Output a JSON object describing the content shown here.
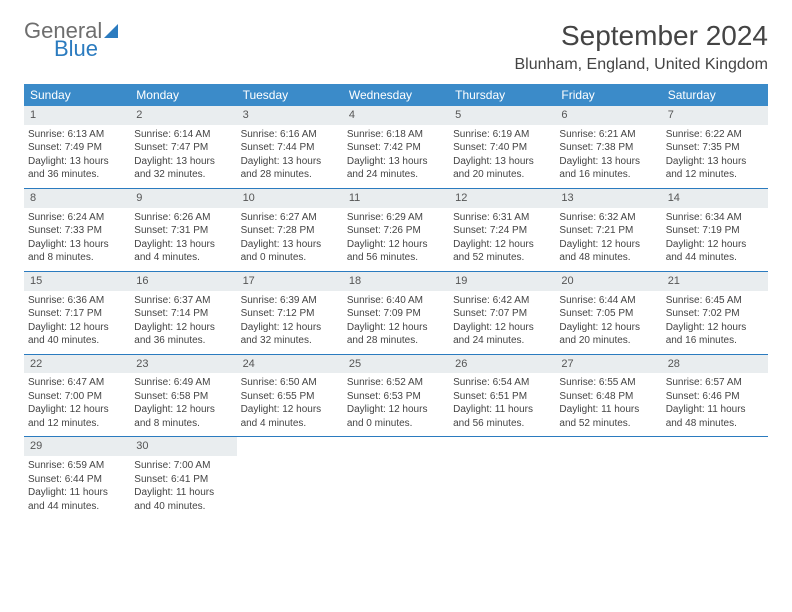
{
  "logo": {
    "part1": "General",
    "part2": "Blue"
  },
  "title": "September 2024",
  "location": "Blunham, England, United Kingdom",
  "colors": {
    "header_bg": "#3b8bc9",
    "header_text": "#ffffff",
    "daynum_bg": "#e9edef",
    "border": "#2b7bbf",
    "text": "#444444",
    "logo_gray": "#6e6e6e",
    "logo_blue": "#2b7bbf",
    "page_bg": "#ffffff"
  },
  "fonts": {
    "title_size_pt": 21,
    "location_size_pt": 12,
    "header_size_pt": 9,
    "cell_size_pt": 7.5
  },
  "weekdays": [
    "Sunday",
    "Monday",
    "Tuesday",
    "Wednesday",
    "Thursday",
    "Friday",
    "Saturday"
  ],
  "weeks": [
    {
      "nums": [
        "1",
        "2",
        "3",
        "4",
        "5",
        "6",
        "7"
      ],
      "cells": [
        {
          "sunrise": "Sunrise: 6:13 AM",
          "sunset": "Sunset: 7:49 PM",
          "daylight": "Daylight: 13 hours and 36 minutes."
        },
        {
          "sunrise": "Sunrise: 6:14 AM",
          "sunset": "Sunset: 7:47 PM",
          "daylight": "Daylight: 13 hours and 32 minutes."
        },
        {
          "sunrise": "Sunrise: 6:16 AM",
          "sunset": "Sunset: 7:44 PM",
          "daylight": "Daylight: 13 hours and 28 minutes."
        },
        {
          "sunrise": "Sunrise: 6:18 AM",
          "sunset": "Sunset: 7:42 PM",
          "daylight": "Daylight: 13 hours and 24 minutes."
        },
        {
          "sunrise": "Sunrise: 6:19 AM",
          "sunset": "Sunset: 7:40 PM",
          "daylight": "Daylight: 13 hours and 20 minutes."
        },
        {
          "sunrise": "Sunrise: 6:21 AM",
          "sunset": "Sunset: 7:38 PM",
          "daylight": "Daylight: 13 hours and 16 minutes."
        },
        {
          "sunrise": "Sunrise: 6:22 AM",
          "sunset": "Sunset: 7:35 PM",
          "daylight": "Daylight: 13 hours and 12 minutes."
        }
      ]
    },
    {
      "nums": [
        "8",
        "9",
        "10",
        "11",
        "12",
        "13",
        "14"
      ],
      "cells": [
        {
          "sunrise": "Sunrise: 6:24 AM",
          "sunset": "Sunset: 7:33 PM",
          "daylight": "Daylight: 13 hours and 8 minutes."
        },
        {
          "sunrise": "Sunrise: 6:26 AM",
          "sunset": "Sunset: 7:31 PM",
          "daylight": "Daylight: 13 hours and 4 minutes."
        },
        {
          "sunrise": "Sunrise: 6:27 AM",
          "sunset": "Sunset: 7:28 PM",
          "daylight": "Daylight: 13 hours and 0 minutes."
        },
        {
          "sunrise": "Sunrise: 6:29 AM",
          "sunset": "Sunset: 7:26 PM",
          "daylight": "Daylight: 12 hours and 56 minutes."
        },
        {
          "sunrise": "Sunrise: 6:31 AM",
          "sunset": "Sunset: 7:24 PM",
          "daylight": "Daylight: 12 hours and 52 minutes."
        },
        {
          "sunrise": "Sunrise: 6:32 AM",
          "sunset": "Sunset: 7:21 PM",
          "daylight": "Daylight: 12 hours and 48 minutes."
        },
        {
          "sunrise": "Sunrise: 6:34 AM",
          "sunset": "Sunset: 7:19 PM",
          "daylight": "Daylight: 12 hours and 44 minutes."
        }
      ]
    },
    {
      "nums": [
        "15",
        "16",
        "17",
        "18",
        "19",
        "20",
        "21"
      ],
      "cells": [
        {
          "sunrise": "Sunrise: 6:36 AM",
          "sunset": "Sunset: 7:17 PM",
          "daylight": "Daylight: 12 hours and 40 minutes."
        },
        {
          "sunrise": "Sunrise: 6:37 AM",
          "sunset": "Sunset: 7:14 PM",
          "daylight": "Daylight: 12 hours and 36 minutes."
        },
        {
          "sunrise": "Sunrise: 6:39 AM",
          "sunset": "Sunset: 7:12 PM",
          "daylight": "Daylight: 12 hours and 32 minutes."
        },
        {
          "sunrise": "Sunrise: 6:40 AM",
          "sunset": "Sunset: 7:09 PM",
          "daylight": "Daylight: 12 hours and 28 minutes."
        },
        {
          "sunrise": "Sunrise: 6:42 AM",
          "sunset": "Sunset: 7:07 PM",
          "daylight": "Daylight: 12 hours and 24 minutes."
        },
        {
          "sunrise": "Sunrise: 6:44 AM",
          "sunset": "Sunset: 7:05 PM",
          "daylight": "Daylight: 12 hours and 20 minutes."
        },
        {
          "sunrise": "Sunrise: 6:45 AM",
          "sunset": "Sunset: 7:02 PM",
          "daylight": "Daylight: 12 hours and 16 minutes."
        }
      ]
    },
    {
      "nums": [
        "22",
        "23",
        "24",
        "25",
        "26",
        "27",
        "28"
      ],
      "cells": [
        {
          "sunrise": "Sunrise: 6:47 AM",
          "sunset": "Sunset: 7:00 PM",
          "daylight": "Daylight: 12 hours and 12 minutes."
        },
        {
          "sunrise": "Sunrise: 6:49 AM",
          "sunset": "Sunset: 6:58 PM",
          "daylight": "Daylight: 12 hours and 8 minutes."
        },
        {
          "sunrise": "Sunrise: 6:50 AM",
          "sunset": "Sunset: 6:55 PM",
          "daylight": "Daylight: 12 hours and 4 minutes."
        },
        {
          "sunrise": "Sunrise: 6:52 AM",
          "sunset": "Sunset: 6:53 PM",
          "daylight": "Daylight: 12 hours and 0 minutes."
        },
        {
          "sunrise": "Sunrise: 6:54 AM",
          "sunset": "Sunset: 6:51 PM",
          "daylight": "Daylight: 11 hours and 56 minutes."
        },
        {
          "sunrise": "Sunrise: 6:55 AM",
          "sunset": "Sunset: 6:48 PM",
          "daylight": "Daylight: 11 hours and 52 minutes."
        },
        {
          "sunrise": "Sunrise: 6:57 AM",
          "sunset": "Sunset: 6:46 PM",
          "daylight": "Daylight: 11 hours and 48 minutes."
        }
      ]
    },
    {
      "nums": [
        "29",
        "30",
        "",
        "",
        "",
        "",
        ""
      ],
      "cells": [
        {
          "sunrise": "Sunrise: 6:59 AM",
          "sunset": "Sunset: 6:44 PM",
          "daylight": "Daylight: 11 hours and 44 minutes."
        },
        {
          "sunrise": "Sunrise: 7:00 AM",
          "sunset": "Sunset: 6:41 PM",
          "daylight": "Daylight: 11 hours and 40 minutes."
        },
        null,
        null,
        null,
        null,
        null
      ]
    }
  ]
}
